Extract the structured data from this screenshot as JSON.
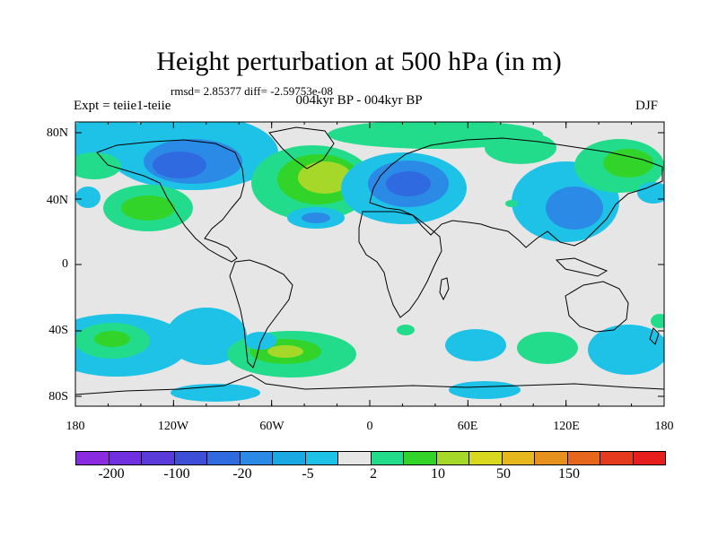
{
  "title": "Height perturbation at 500 hPa (in m)",
  "stats": "rmsd= 2.85377 diff= -2.59753e-08",
  "experiment": "Expt = teiie1-teiie",
  "period": "004kyr BP - 004kyr BP",
  "season": "DJF",
  "lat_labels": [
    "80N",
    "40N",
    "0",
    "40S",
    "80S"
  ],
  "lon_labels": [
    "180",
    "120W",
    "60W",
    "0",
    "60E",
    "120E",
    "180"
  ],
  "colorbar": {
    "colors": [
      "#8a2be2",
      "#6f30e0",
      "#5a3ad8",
      "#3c4fd6",
      "#2f6ae0",
      "#2a8ae6",
      "#1aa9e3",
      "#1ec2e6",
      "#e6e6e6",
      "#22dc8c",
      "#32d42a",
      "#a6d82a",
      "#d8d81e",
      "#e6b81e",
      "#e6901e",
      "#e6661e",
      "#e63a1e",
      "#e61e1e"
    ],
    "labels": [
      "-200",
      "-100",
      "-20",
      "-5",
      "2",
      "10",
      "50",
      "150"
    ]
  }
}
